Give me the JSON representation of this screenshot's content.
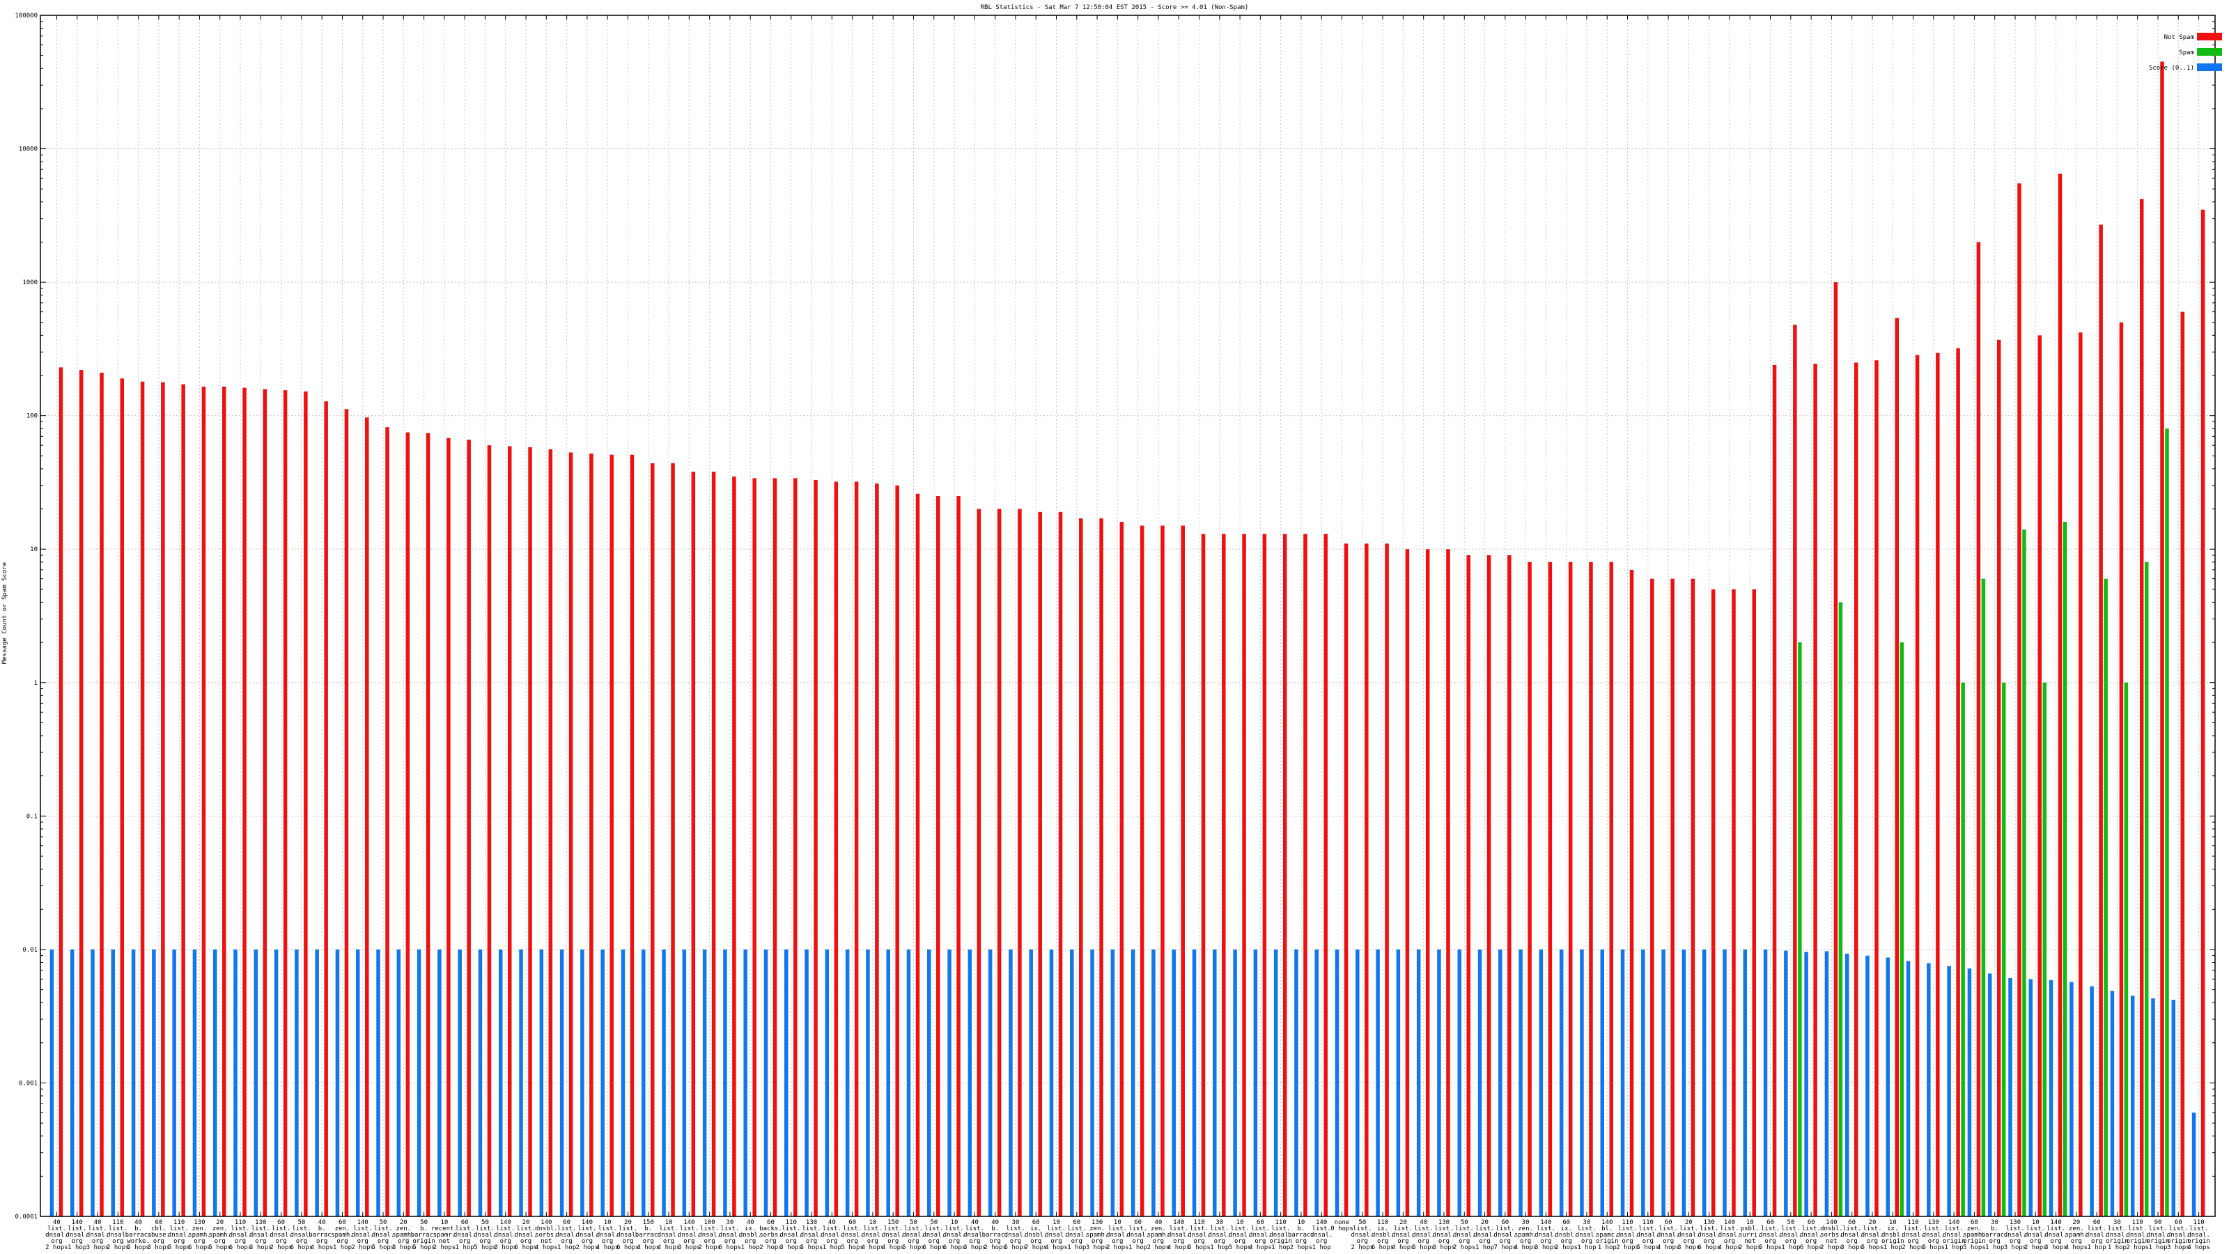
{
  "chart_data": {
    "type": "bar",
    "title": "RBL Statistics - Sat Mar  7 12:58:04 EST 2015 - Score >= 4.01 (Non-Spam)",
    "ylabel": "Message Count or Spam Score",
    "xlabel": "",
    "y_scale": "log",
    "ylim": [
      0.0001,
      100000
    ],
    "y_ticks": [
      "0.0001",
      "0.001",
      "0.01",
      "0.1",
      "1",
      "10",
      "100",
      "1000",
      "10000",
      "100000"
    ],
    "grid": true,
    "legend_position": "top-right",
    "series": [
      {
        "name": "Not Spam",
        "color": "#ee1111",
        "values": [
          230,
          220,
          210,
          190,
          180,
          178,
          172,
          165,
          165,
          162,
          158,
          155,
          152,
          128,
          112,
          97,
          82,
          75,
          74,
          68,
          66,
          60,
          59,
          58,
          56,
          53,
          52,
          51,
          51,
          44,
          44,
          38,
          38,
          35,
          34,
          34,
          34,
          33,
          32,
          32,
          31,
          30,
          26,
          25,
          25,
          20,
          20,
          20,
          19,
          19,
          17,
          17,
          16,
          15,
          15,
          15,
          13,
          13,
          13,
          13,
          13,
          13,
          13,
          11,
          11,
          11,
          10,
          10,
          10,
          9,
          9,
          9,
          8,
          8,
          8,
          8,
          8,
          7,
          6,
          6,
          6,
          5,
          5,
          5,
          240,
          480,
          245,
          1000,
          250,
          260,
          540,
          285,
          295,
          320,
          2000,
          370,
          5500,
          400,
          6500,
          420,
          2700,
          500,
          4200,
          45000,
          600,
          3500
        ]
      },
      {
        "name": "Spam",
        "color": "#11bb11",
        "values": [
          0,
          0,
          0,
          0,
          0,
          0,
          0,
          0,
          0,
          0,
          0,
          0,
          0,
          0,
          0,
          0,
          0,
          0,
          0,
          0,
          0,
          0,
          0,
          0,
          0,
          0,
          0,
          0,
          0,
          0,
          0,
          0,
          0,
          0,
          0,
          0,
          0,
          0,
          0,
          0,
          0,
          0,
          0,
          0,
          0,
          0,
          0,
          0,
          0,
          0,
          0,
          0,
          0,
          0,
          0,
          0,
          0,
          0,
          0,
          0,
          0,
          0,
          0,
          0,
          0,
          0,
          0,
          0,
          0,
          0,
          0,
          0,
          0,
          0,
          0,
          0,
          0,
          0,
          0,
          0,
          0,
          0,
          0,
          0,
          0,
          2,
          0,
          4,
          0,
          0,
          2,
          0,
          0,
          1,
          6,
          1,
          14,
          1,
          16,
          0,
          6,
          1,
          8,
          80,
          0,
          0
        ]
      },
      {
        "name": "Score (0..1)",
        "color": "#1177ee",
        "values": [
          0.01,
          0.01,
          0.01,
          0.01,
          0.01,
          0.01,
          0.01,
          0.01,
          0.01,
          0.01,
          0.01,
          0.01,
          0.01,
          0.01,
          0.01,
          0.01,
          0.01,
          0.01,
          0.01,
          0.01,
          0.01,
          0.01,
          0.01,
          0.01,
          0.01,
          0.01,
          0.01,
          0.01,
          0.01,
          0.01,
          0.01,
          0.01,
          0.01,
          0.01,
          0.01,
          0.01,
          0.01,
          0.01,
          0.01,
          0.01,
          0.01,
          0.01,
          0.01,
          0.01,
          0.01,
          0.01,
          0.01,
          0.01,
          0.01,
          0.01,
          0.01,
          0.01,
          0.01,
          0.01,
          0.01,
          0.01,
          0.01,
          0.01,
          0.01,
          0.01,
          0.01,
          0.01,
          0.01,
          0.01,
          0.01,
          0.01,
          0.01,
          0.01,
          0.01,
          0.01,
          0.01,
          0.01,
          0.01,
          0.01,
          0.01,
          0.01,
          0.01,
          0.01,
          0.01,
          0.01,
          0.01,
          0.01,
          0.01,
          0.01,
          0.01,
          0.0098,
          0.0096,
          0.0097,
          0.0093,
          0.009,
          0.0087,
          0.0082,
          0.0079,
          0.0075,
          0.0072,
          0.0066,
          0.0061,
          0.006,
          0.0059,
          0.0057,
          0.0053,
          0.0049,
          0.0045,
          0.0043,
          0.0042,
          0.0006
        ]
      }
    ],
    "categories": [
      [
        "40",
        "list.",
        "dnsal.",
        "org",
        "2 hops"
      ],
      [
        "140",
        "list.",
        "dnsal.",
        "org",
        "1 hop"
      ],
      [
        "40",
        "list.",
        "dnsal.",
        "org",
        "3 hops"
      ],
      [
        "110",
        "list.",
        "dnsal.",
        "org",
        "2 hops"
      ],
      [
        "40",
        "b.",
        "barrac.",
        "worke.",
        "5 hops"
      ],
      [
        "60",
        "cbl.",
        "abuse.",
        "org",
        "3 hops"
      ],
      [
        "110",
        "list.",
        "dnsal.",
        "org",
        "5 hops"
      ],
      [
        "130",
        "zen.",
        "spamh.",
        "org",
        "6 hops"
      ],
      [
        "20",
        "zen.",
        "spamh.",
        "org",
        "5 hops"
      ],
      [
        "110",
        "list.",
        "dnsal.",
        "org",
        "6 hops"
      ],
      [
        "130",
        "list.",
        "dnsal.",
        "org",
        "3 hops"
      ],
      [
        "60",
        "list.",
        "dnsal.",
        "org",
        "2 hops"
      ],
      [
        "50",
        "list.",
        "dnsal.",
        "org",
        "6 hops"
      ],
      [
        "40",
        "b.",
        "barrac.",
        "org",
        "4 hops"
      ],
      [
        "60",
        "zen.",
        "spamh.",
        "org",
        "1 hop"
      ],
      [
        "140",
        "list.",
        "dnsal.",
        "org",
        "2 hops"
      ],
      [
        "50",
        "list.",
        "dnsal.",
        "org",
        "5 hops"
      ],
      [
        "20",
        "zen.",
        "spamh.",
        "org",
        "3 hops"
      ],
      [
        "50",
        "b.",
        "barrac.",
        "origin",
        "5 hops"
      ],
      [
        "10",
        "recent.",
        "spamr.",
        "net",
        "2 hops"
      ],
      [
        "60",
        "list.",
        "dnsal.",
        "org",
        "1 hop"
      ],
      [
        "50",
        "list.",
        "dnsal.",
        "org",
        "5 hops"
      ],
      [
        "140",
        "list.",
        "dnsal.",
        "org",
        "3 hops"
      ],
      [
        "20",
        "list.",
        "dnsal.",
        "org",
        "6 hops"
      ],
      [
        "140",
        "dnsbl.",
        "sorbs.",
        "net",
        "4 hops"
      ],
      [
        "60",
        "list.",
        "dnsal.",
        "org",
        "1 hop"
      ],
      [
        "140",
        "list.",
        "dnsal.",
        "org",
        "2 hops"
      ],
      [
        "10",
        "list.",
        "dnsal.",
        "org",
        "4 hops"
      ],
      [
        "20",
        "list.",
        "dnsal.",
        "org",
        "6 hops"
      ],
      [
        "150",
        "b.",
        "barrac.",
        "org",
        "4 hops"
      ],
      [
        "10",
        "list.",
        "dnsal.",
        "org",
        "4 hops"
      ],
      [
        "140",
        "list.",
        "dnsal.",
        "org",
        "3 hops"
      ],
      [
        "100",
        "list.",
        "dnsal.",
        "org",
        "2 hops"
      ],
      [
        "30",
        "list.",
        "dnsal.",
        "org",
        "6 hops"
      ],
      [
        "40",
        "ix.",
        "dnsbl.",
        "org",
        "1 hop"
      ],
      [
        "60",
        "backs.",
        "sorbs.",
        "org",
        "2 hops"
      ],
      [
        "110",
        "list.",
        "dnsal.",
        "org",
        "3 hops"
      ],
      [
        "130",
        "list.",
        "dnsal.",
        "org",
        "5 hops"
      ],
      [
        "40",
        "list.",
        "dnsal.",
        "org",
        "1 hop"
      ],
      [
        "60",
        "list.",
        "dnsal.",
        "org",
        "5 hops"
      ],
      [
        "10",
        "list.",
        "dnsal.",
        "org",
        "4 hops"
      ],
      [
        "150",
        "list.",
        "dnsal.",
        "org",
        "4 hops"
      ],
      [
        "50",
        "list.",
        "dnsal.",
        "org",
        "5 hops"
      ],
      [
        "50",
        "list.",
        "dnsal.",
        "org",
        "6 hops"
      ],
      [
        "10",
        "list.",
        "dnsal.",
        "org",
        "6 hops"
      ],
      [
        "40",
        "list.",
        "dnsal.",
        "org",
        "3 hops"
      ],
      [
        "40",
        "b.",
        "barrac.",
        "org",
        "2 hops"
      ],
      [
        "30",
        "list.",
        "dnsal.",
        "org",
        "5 hops"
      ],
      [
        "60",
        "ix.",
        "dnsbl.",
        "org",
        "7 hops"
      ],
      [
        "10",
        "list.",
        "dnsal.",
        "org",
        "4 hops"
      ],
      [
        "60",
        "list.",
        "dnsal.",
        "org",
        "1 hop"
      ],
      [
        "130",
        "zen.",
        "spamh.",
        "org",
        "3 hops"
      ],
      [
        "10",
        "list.",
        "dnsal.",
        "org",
        "2 hops"
      ],
      [
        "60",
        "list.",
        "dnsal.",
        "org",
        "1 hop"
      ],
      [
        "40",
        "zen.",
        "spamh.",
        "org",
        "2 hops"
      ],
      [
        "140",
        "list.",
        "dnsal.",
        "org",
        "4 hops"
      ],
      [
        "110",
        "list.",
        "dnsal.",
        "org",
        "5 hops"
      ],
      [
        "30",
        "list.",
        "dnsal.",
        "org",
        "1 hop"
      ],
      [
        "10",
        "list.",
        "dnsal.",
        "org",
        "5 hops"
      ],
      [
        "60",
        "list.",
        "dnsal.",
        "org",
        "4 hops"
      ],
      [
        "110",
        "list.",
        "dnsal.",
        "origin",
        "1 hop"
      ],
      [
        "10",
        "b.",
        "barrac.",
        "org",
        "2 hops"
      ],
      [
        "140",
        "list.",
        "dnsal.",
        "org",
        "1 hop"
      ],
      [
        "none",
        "0 hops",
        "",
        "",
        ""
      ],
      [
        "50",
        "list.",
        "dnsal.",
        "org",
        "2 hops"
      ],
      [
        "110",
        "ix.",
        "dnsbl.",
        "org",
        "6 hops"
      ],
      [
        "20",
        "list.",
        "dnsal.",
        "org",
        "4 hops"
      ],
      [
        "40",
        "list.",
        "dnsal.",
        "org",
        "5 hops"
      ],
      [
        "130",
        "list.",
        "dnsal.",
        "org",
        "3 hops"
      ],
      [
        "50",
        "list.",
        "dnsal.",
        "org",
        "2 hops"
      ],
      [
        "20",
        "list.",
        "dnsal.",
        "org",
        "1 hop"
      ],
      [
        "60",
        "list.",
        "dnsal.",
        "org",
        "7 hops"
      ],
      [
        "30",
        "zen.",
        "spamh.",
        "org",
        "4 hops"
      ],
      [
        "140",
        "list.",
        "dnsal.",
        "org",
        "3 hops"
      ],
      [
        "60",
        "ix.",
        "dnsbl.",
        "org",
        "2 hops"
      ],
      [
        "30",
        "list.",
        "dnsal.",
        "org",
        "1 hop"
      ],
      [
        "140",
        "bl.",
        "spamc.",
        "origin",
        "1 hop"
      ],
      [
        "110",
        "list.",
        "dnsal.",
        "org",
        "2 hops"
      ],
      [
        "110",
        "list.",
        "dnsal.",
        "org",
        "5 hops"
      ],
      [
        "60",
        "list.",
        "dnsal.",
        "org",
        "4 hops"
      ],
      [
        "20",
        "list.",
        "dnsal.",
        "org",
        "3 hops"
      ],
      [
        "130",
        "list.",
        "dnsal.",
        "org",
        "6 hops"
      ],
      [
        "140",
        "list.",
        "dnsal.",
        "org",
        "4 hops"
      ],
      [
        "10",
        "psbl.",
        "surri.",
        "net",
        "2 hops"
      ],
      [
        "60",
        "list.",
        "dnsal.",
        "org",
        "5 hops"
      ],
      [
        "50",
        "list.",
        "dnsal.",
        "org",
        "1 hop"
      ],
      [
        "60",
        "list.",
        "dnsal.",
        "org",
        "6 hops"
      ],
      [
        "140",
        "dnsbl.",
        "sorbs.",
        "net",
        "2 hops"
      ],
      [
        "60",
        "list.",
        "dnsal.",
        "org",
        "3 hops"
      ],
      [
        "20",
        "list.",
        "dnsal.",
        "org",
        "5 hops"
      ],
      [
        "10",
        "ix.",
        "dnsbl.",
        "origin",
        "1 hop"
      ],
      [
        "110",
        "list.",
        "dnsal.",
        "org",
        "2 hops"
      ],
      [
        "130",
        "list.",
        "dnsal.",
        "org",
        "5 hops"
      ],
      [
        "140",
        "list.",
        "dnsal.",
        "origin",
        "1 hop"
      ],
      [
        "60",
        "zen.",
        "spamh.",
        "origin",
        "5 hops"
      ],
      [
        "30",
        "b.",
        "barrac.",
        "org",
        "1 hop"
      ],
      [
        "130",
        "list.",
        "dnsal.",
        "org",
        "3 hops"
      ],
      [
        "10",
        "list.",
        "dnsal.",
        "org",
        "2 hops"
      ],
      [
        "140",
        "list.",
        "dnsal.",
        "org",
        "3 hops"
      ],
      [
        "20",
        "zen.",
        "spamh.",
        "org",
        "4 hops"
      ],
      [
        "60",
        "list.",
        "dnsal.",
        "org",
        "1 hop"
      ],
      [
        "30",
        "list.",
        "dnsal.",
        "origin",
        "1 hop"
      ],
      [
        "110",
        "list.",
        "dnsal.",
        "origin",
        "2 hops"
      ],
      [
        "90",
        "list.",
        "dnsal.",
        "origin",
        "1 hop"
      ],
      [
        "60",
        "list.",
        "dnsal.",
        "origin",
        "3 hops"
      ],
      [
        "110",
        "list.",
        "dnsal.",
        "origin",
        "4 hops"
      ]
    ]
  }
}
